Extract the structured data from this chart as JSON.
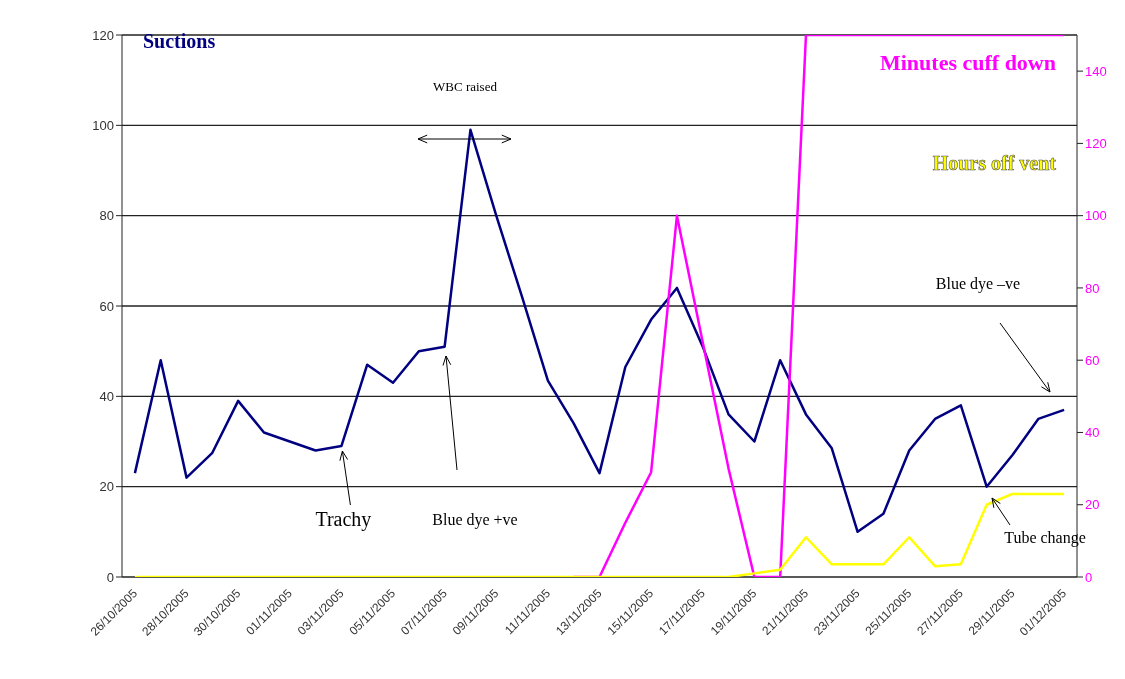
{
  "chart_data": {
    "type": "line",
    "categories": [
      "26/10/2005",
      null,
      "28/10/2005",
      null,
      "30/10/2005",
      null,
      "01/11/2005",
      null,
      "03/11/2005",
      null,
      "05/11/2005",
      null,
      "07/11/2005",
      null,
      "09/11/2005",
      null,
      "11/11/2005",
      null,
      "13/11/2005",
      null,
      "15/11/2005",
      null,
      "17/11/2005",
      null,
      "19/11/2005",
      null,
      "21/11/2005",
      null,
      "23/11/2005",
      null,
      "25/11/2005",
      null,
      "27/11/2005",
      null,
      "29/11/2005",
      null,
      "01/12/2005"
    ],
    "series": [
      {
        "name": "Suctions",
        "color": "#000080",
        "values": [
          23,
          48,
          22,
          27.5,
          39,
          32,
          30,
          28,
          29,
          47,
          43,
          50,
          51,
          99,
          80,
          62,
          43.5,
          34,
          23,
          46.5,
          57,
          64,
          51,
          36,
          30,
          48,
          36,
          28.5,
          10,
          14,
          28,
          35,
          38,
          20,
          27,
          35,
          37
        ]
      },
      {
        "name": "Minutes cuff down",
        "color": "#ff00ff",
        "axis": "y2",
        "values": [
          null,
          null,
          null,
          null,
          null,
          null,
          null,
          null,
          null,
          null,
          null,
          null,
          null,
          null,
          null,
          null,
          null,
          0,
          0,
          15,
          29,
          100,
          65,
          30,
          0,
          0,
          150,
          150,
          150,
          150,
          150,
          150,
          150,
          150,
          150,
          150,
          150
        ]
      },
      {
        "name": "Hours off vent",
        "color": "#ffff00",
        "axis": "y2",
        "values": [
          0,
          0,
          0,
          0,
          0,
          0,
          0,
          0,
          0,
          0,
          0,
          0,
          0,
          0,
          0,
          0,
          0,
          0,
          0,
          0,
          0,
          0,
          0,
          0,
          1,
          2,
          11,
          3.5,
          3.5,
          3.5,
          11,
          3,
          3.5,
          20,
          23,
          23,
          23
        ]
      }
    ],
    "ylim": [
      0,
      120
    ],
    "yticks": [
      0,
      20,
      40,
      60,
      80,
      100,
      120
    ],
    "y2lim": [
      0,
      150
    ],
    "y2ticks": [
      0,
      20,
      40,
      60,
      80,
      100,
      120,
      140
    ],
    "grid": "y",
    "marker": "none",
    "line_style": "solid",
    "annotations": [
      "WBC raised",
      {
        "text": "Trachy",
        "x": "03/11/2005",
        "y": 29
      },
      "Blue dye +ve",
      "Blue dye –ve",
      "Tube change"
    ]
  }
}
